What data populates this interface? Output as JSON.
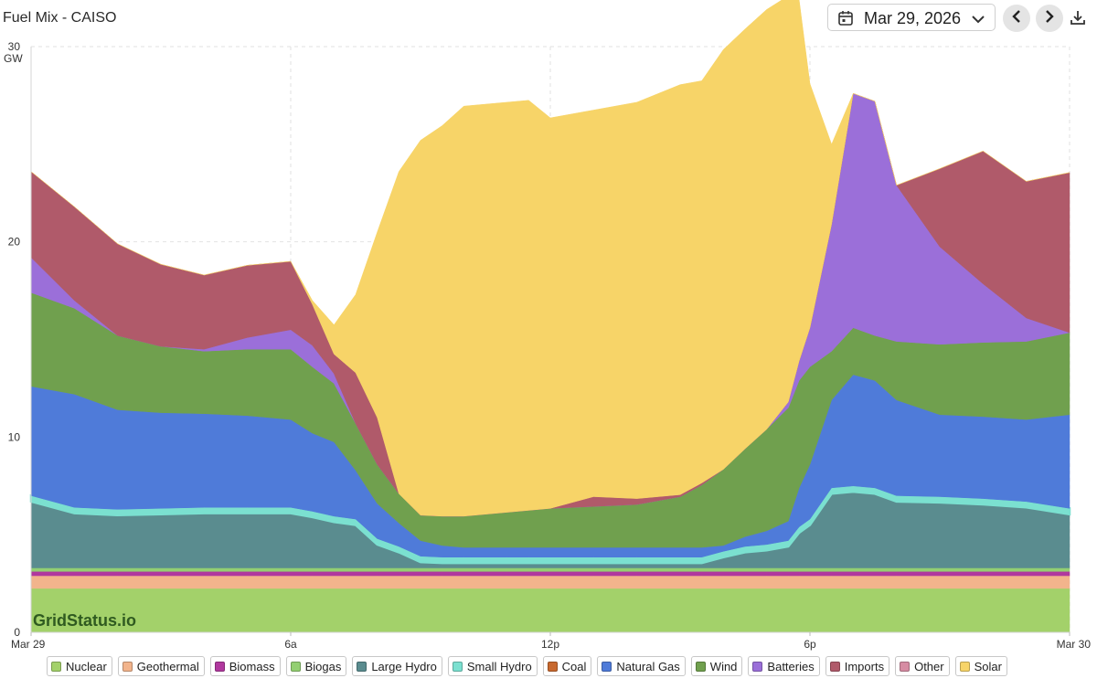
{
  "header": {
    "title": "Fuel Mix - CAISO",
    "date": "Mar 29, 2026"
  },
  "icons": [
    "calendar-icon",
    "chevron-down-icon",
    "prev-day-icon",
    "next-day-icon",
    "download-icon"
  ],
  "watermark": "GridStatus.io",
  "chart_data": {
    "type": "area",
    "stacked": true,
    "ylabel": "GW",
    "ylim": [
      0,
      30
    ],
    "yticks": [
      0,
      10,
      20,
      30
    ],
    "xlim": [
      0,
      24
    ],
    "xticks": [
      {
        "x": 0,
        "label": "Mar 29"
      },
      {
        "x": 6,
        "label": "6a"
      },
      {
        "x": 12,
        "label": "12p"
      },
      {
        "x": 18,
        "label": "6p"
      },
      {
        "x": 24,
        "label": "Mar 30"
      }
    ],
    "grid": true,
    "legend_position": "bottom",
    "x": [
      0,
      1,
      2,
      3,
      4,
      5,
      6,
      6.5,
      7,
      7.5,
      8,
      8.5,
      9,
      9.5,
      10,
      10.5,
      11,
      11.5,
      12,
      13,
      14,
      15,
      15.5,
      16,
      16.5,
      17,
      17.5,
      17.75,
      18,
      18.5,
      19,
      19.5,
      20,
      21,
      22,
      23,
      24
    ],
    "series": [
      {
        "name": "Nuclear",
        "color": "#a3d16a",
        "values": [
          2.25,
          2.25,
          2.25,
          2.25,
          2.25,
          2.25,
          2.25,
          2.25,
          2.25,
          2.25,
          2.25,
          2.25,
          2.25,
          2.25,
          2.25,
          2.25,
          2.25,
          2.25,
          2.25,
          2.25,
          2.25,
          2.25,
          2.25,
          2.25,
          2.25,
          2.25,
          2.25,
          2.25,
          2.25,
          2.25,
          2.25,
          2.25,
          2.25,
          2.25,
          2.25,
          2.25,
          2.25
        ]
      },
      {
        "name": "Geothermal",
        "color": "#f2b48c",
        "values": [
          0.65,
          0.65,
          0.65,
          0.65,
          0.65,
          0.65,
          0.65,
          0.65,
          0.65,
          0.65,
          0.65,
          0.65,
          0.65,
          0.65,
          0.65,
          0.65,
          0.65,
          0.65,
          0.65,
          0.65,
          0.65,
          0.65,
          0.65,
          0.65,
          0.65,
          0.65,
          0.65,
          0.65,
          0.65,
          0.65,
          0.65,
          0.65,
          0.65,
          0.65,
          0.65,
          0.65,
          0.65
        ]
      },
      {
        "name": "Biomass",
        "color": "#b0389e",
        "values": [
          0.22,
          0.22,
          0.22,
          0.22,
          0.22,
          0.22,
          0.22,
          0.22,
          0.22,
          0.22,
          0.22,
          0.22,
          0.22,
          0.22,
          0.22,
          0.22,
          0.22,
          0.22,
          0.22,
          0.22,
          0.22,
          0.22,
          0.22,
          0.22,
          0.22,
          0.22,
          0.22,
          0.22,
          0.22,
          0.22,
          0.22,
          0.22,
          0.22,
          0.22,
          0.22,
          0.22,
          0.22
        ]
      },
      {
        "name": "Biogas",
        "color": "#93cf72",
        "values": [
          0.18,
          0.18,
          0.18,
          0.18,
          0.18,
          0.18,
          0.18,
          0.18,
          0.18,
          0.18,
          0.18,
          0.18,
          0.18,
          0.18,
          0.18,
          0.18,
          0.18,
          0.18,
          0.18,
          0.18,
          0.18,
          0.18,
          0.18,
          0.18,
          0.18,
          0.18,
          0.18,
          0.18,
          0.18,
          0.18,
          0.18,
          0.18,
          0.18,
          0.18,
          0.18,
          0.18,
          0.18
        ]
      },
      {
        "name": "Large Hydro",
        "color": "#5a8c8f",
        "values": [
          3.4,
          2.8,
          2.7,
          2.75,
          2.8,
          2.8,
          2.8,
          2.6,
          2.35,
          2.2,
          1.2,
          0.8,
          0.3,
          0.25,
          0.25,
          0.25,
          0.25,
          0.25,
          0.25,
          0.25,
          0.25,
          0.25,
          0.25,
          0.55,
          0.8,
          0.9,
          1.1,
          1.8,
          2.2,
          3.8,
          3.9,
          3.8,
          3.4,
          3.35,
          3.25,
          3.1,
          2.75
        ]
      },
      {
        "name": "Small Hydro",
        "color": "#7be0d0",
        "values": [
          0.3,
          0.3,
          0.3,
          0.3,
          0.3,
          0.3,
          0.3,
          0.3,
          0.3,
          0.3,
          0.3,
          0.3,
          0.3,
          0.3,
          0.3,
          0.3,
          0.3,
          0.3,
          0.3,
          0.3,
          0.3,
          0.3,
          0.3,
          0.3,
          0.3,
          0.3,
          0.3,
          0.3,
          0.3,
          0.3,
          0.3,
          0.3,
          0.3,
          0.3,
          0.3,
          0.3,
          0.3
        ]
      },
      {
        "name": "Coal",
        "color": "#c8682e",
        "values": [
          0,
          0,
          0,
          0,
          0,
          0,
          0,
          0,
          0,
          0,
          0,
          0,
          0,
          0,
          0,
          0,
          0,
          0,
          0,
          0,
          0,
          0,
          0,
          0,
          0,
          0,
          0,
          0,
          0,
          0,
          0,
          0,
          0,
          0,
          0,
          0,
          0
        ]
      },
      {
        "name": "Natural Gas",
        "color": "#4f7bd9",
        "values": [
          5.6,
          5.8,
          5.1,
          4.9,
          4.8,
          4.7,
          4.5,
          4.0,
          3.8,
          2.5,
          1.8,
          1.2,
          0.8,
          0.6,
          0.5,
          0.5,
          0.5,
          0.5,
          0.5,
          0.5,
          0.5,
          0.5,
          0.5,
          0.3,
          0.5,
          0.7,
          1.0,
          2.0,
          2.8,
          4.5,
          5.7,
          5.5,
          4.9,
          4.2,
          4.2,
          4.2,
          4.8
        ]
      },
      {
        "name": "Wind",
        "color": "#70a04e",
        "values": [
          4.8,
          4.4,
          3.8,
          3.4,
          3.2,
          3.4,
          3.6,
          3.4,
          3.0,
          2.4,
          2.0,
          1.5,
          1.3,
          1.5,
          1.6,
          1.7,
          1.8,
          1.9,
          2.0,
          2.1,
          2.2,
          2.6,
          3.2,
          3.9,
          4.5,
          5.2,
          5.8,
          5.5,
          5.0,
          2.5,
          2.4,
          2.3,
          3.0,
          3.6,
          3.8,
          4.0,
          4.2
        ]
      },
      {
        "name": "Batteries",
        "color": "#9b6fd9",
        "values": [
          1.8,
          0.4,
          0,
          0,
          0.1,
          0.6,
          1.0,
          1.1,
          0.5,
          0,
          0,
          0,
          0,
          0,
          0,
          0,
          0,
          0,
          0,
          0,
          0,
          0,
          0,
          0,
          0,
          0,
          0.3,
          1.0,
          2.0,
          6.5,
          12.0,
          12.0,
          8.0,
          5.0,
          3.0,
          1.2,
          0
        ]
      },
      {
        "name": "Imports",
        "color": "#b05a6a",
        "values": [
          4.4,
          4.8,
          4.7,
          4.2,
          3.8,
          3.7,
          3.5,
          2.1,
          1.0,
          2.6,
          2.4,
          0,
          0,
          0,
          0,
          0,
          0,
          0,
          0,
          0.5,
          0.3,
          0.1,
          0.1,
          0,
          0,
          0,
          0,
          0,
          0,
          0,
          0,
          0,
          0,
          4.0,
          6.8,
          7.0,
          8.2
        ]
      },
      {
        "name": "Other",
        "color": "#d68ca3",
        "values": [
          0,
          0,
          0,
          0,
          0,
          0,
          0,
          0,
          0,
          0,
          0,
          0,
          0,
          0,
          0,
          0,
          0,
          0,
          0,
          0,
          0,
          0,
          0,
          0,
          0,
          0,
          0,
          0,
          0,
          0,
          0,
          0,
          0,
          0,
          0,
          0,
          0
        ]
      },
      {
        "name": "Solar",
        "color": "#f7d468",
        "values": [
          0,
          0,
          0,
          0,
          0,
          0,
          0,
          0.2,
          1.5,
          4.0,
          9.5,
          16.5,
          19.2,
          20.0,
          21.0,
          21.0,
          21.0,
          21.0,
          20.0,
          19.8,
          20.3,
          21.0,
          20.6,
          21.5,
          21.5,
          21.5,
          20.8,
          18.5,
          12.5,
          4.1,
          0,
          0,
          0,
          0,
          0,
          0,
          0
        ]
      }
    ]
  }
}
